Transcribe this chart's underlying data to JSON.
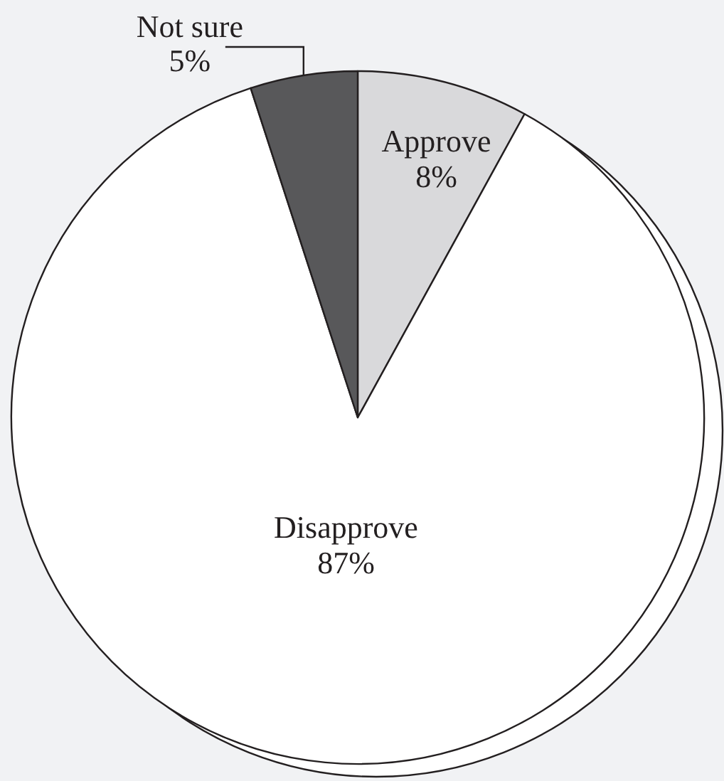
{
  "chart_data": {
    "type": "pie",
    "categories": [
      "Approve",
      "Disapprove",
      "Not sure"
    ],
    "values": [
      8,
      87,
      5
    ],
    "colors": [
      "#d9d9db",
      "#ffffff",
      "#58585a"
    ],
    "value_labels": [
      "8%",
      "87%",
      "5%"
    ],
    "legend": false
  }
}
